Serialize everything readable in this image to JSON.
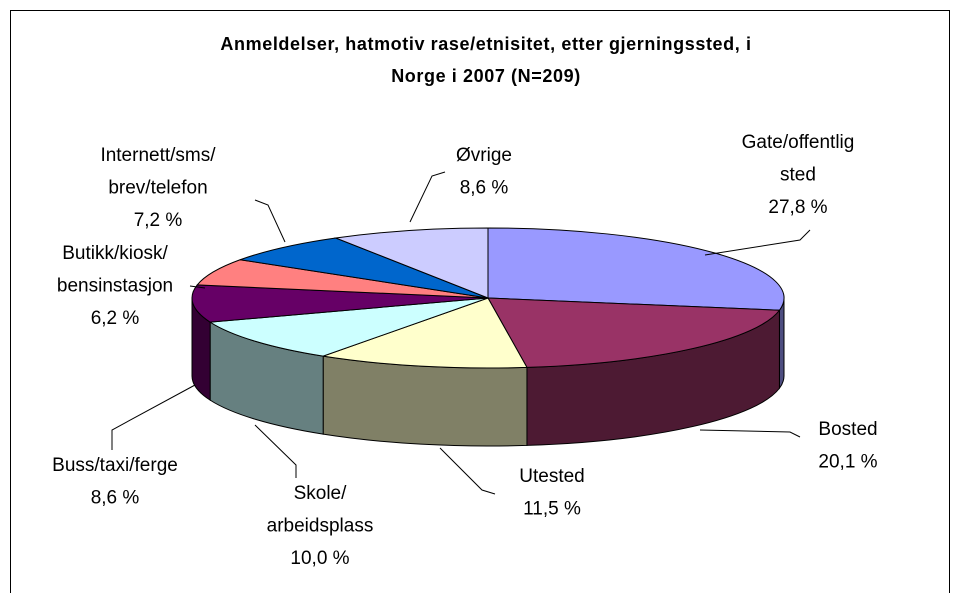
{
  "chart_data": {
    "type": "pie3d",
    "title": [
      "Anmeldelser, hatmotiv rase/etnisitet, etter gjerningssted, i",
      "Norge i 2007 (N=209)"
    ],
    "categories": [
      [
        "Gate/offentlig",
        "sted"
      ],
      [
        "Bosted"
      ],
      [
        "Utested"
      ],
      [
        "Skole/",
        "arbeidsplass"
      ],
      [
        "Buss/taxi/ferge"
      ],
      [
        "Butikk/kiosk/",
        "bensinstasjon"
      ],
      [
        "Internett/sms/",
        "brev/telefon"
      ],
      [
        "Øvrige"
      ]
    ],
    "values": [
      27.8,
      20.1,
      11.5,
      10.0,
      8.6,
      6.2,
      7.2,
      8.6
    ],
    "value_labels": [
      "27,8 %",
      "20,1 %",
      "11,5 %",
      "10,0 %",
      "8,6 %",
      "6,2 %",
      "7,2 %",
      "8,6 %"
    ],
    "colors": [
      "#9999ff",
      "#993366",
      "#ffffcc",
      "#ccffff",
      "#660066",
      "#ff8080",
      "#0066cc",
      "#ccccff"
    ]
  }
}
